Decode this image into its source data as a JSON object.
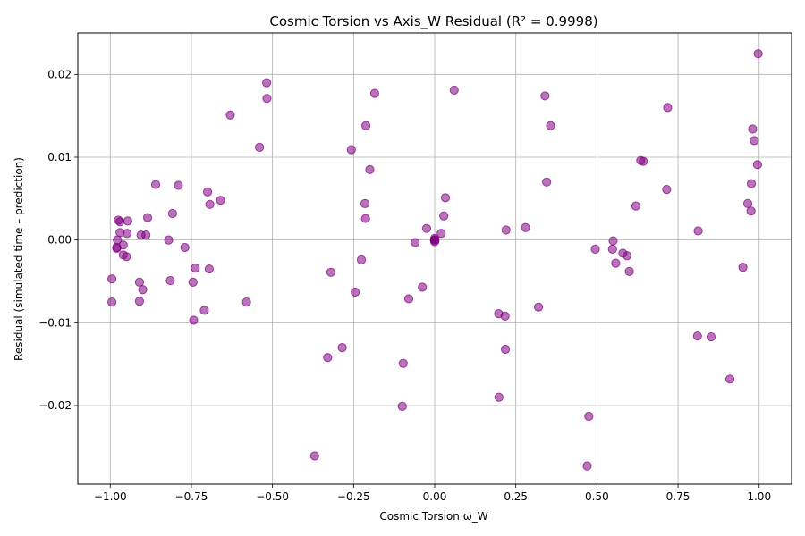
{
  "chart_data": {
    "type": "scatter",
    "title": "Cosmic Torsion vs Axis_W Residual (R² = 0.9998)",
    "xlabel": "Cosmic Torsion ω_W",
    "ylabel": "Residual (simulated time – prediction)",
    "xlim": [
      -1.1,
      1.1
    ],
    "ylim": [
      -0.0295,
      0.025
    ],
    "xticks": [
      -1.0,
      -0.75,
      -0.5,
      -0.25,
      0.0,
      0.25,
      0.5,
      0.75,
      1.0
    ],
    "xtick_labels": [
      "−1.00",
      "−0.75",
      "−0.50",
      "−0.25",
      "0.00",
      "0.25",
      "0.50",
      "0.75",
      "1.00"
    ],
    "yticks": [
      -0.02,
      -0.01,
      0.0,
      0.01,
      0.02
    ],
    "ytick_labels": [
      "−0.02",
      "−0.01",
      "0.00",
      "0.01",
      "0.02"
    ],
    "grid": true,
    "marker_color": "#800080",
    "series": [
      {
        "points": [
          [
            -0.995,
            -0.0075
          ],
          [
            -0.995,
            -0.0047
          ],
          [
            -0.98,
            -0.001
          ],
          [
            -0.98,
            -0.0009
          ],
          [
            -0.978,
            0.0
          ],
          [
            -0.975,
            0.0024
          ],
          [
            -0.97,
            0.0022
          ],
          [
            -0.97,
            0.0009
          ],
          [
            -0.96,
            -0.0006
          ],
          [
            -0.96,
            -0.0018
          ],
          [
            -0.95,
            -0.002
          ],
          [
            -0.948,
            0.0008
          ],
          [
            -0.946,
            0.0023
          ],
          [
            -0.91,
            -0.0051
          ],
          [
            -0.91,
            -0.0074
          ],
          [
            -0.905,
            0.0006
          ],
          [
            -0.9,
            -0.006
          ],
          [
            -0.89,
            0.0006
          ],
          [
            -0.885,
            0.0027
          ],
          [
            -0.86,
            0.0067
          ],
          [
            -0.82,
            0.0
          ],
          [
            -0.815,
            -0.0049
          ],
          [
            -0.808,
            0.0032
          ],
          [
            -0.79,
            0.0066
          ],
          [
            -0.77,
            -0.0009
          ],
          [
            -0.745,
            -0.0051
          ],
          [
            -0.743,
            -0.0097
          ],
          [
            -0.738,
            -0.0034
          ],
          [
            -0.71,
            -0.0085
          ],
          [
            -0.7,
            0.0058
          ],
          [
            -0.695,
            -0.0035
          ],
          [
            -0.693,
            0.0043
          ],
          [
            -0.66,
            0.0048
          ],
          [
            -0.63,
            0.0151
          ],
          [
            -0.58,
            -0.0075
          ],
          [
            -0.54,
            0.0112
          ],
          [
            -0.518,
            0.019
          ],
          [
            -0.517,
            0.0171
          ],
          [
            -0.37,
            -0.0261
          ],
          [
            -0.33,
            -0.0142
          ],
          [
            -0.32,
            -0.0039
          ],
          [
            -0.285,
            -0.013
          ],
          [
            -0.257,
            0.0109
          ],
          [
            -0.245,
            -0.0063
          ],
          [
            -0.226,
            -0.0024
          ],
          [
            -0.215,
            0.0044
          ],
          [
            -0.213,
            0.0026
          ],
          [
            -0.212,
            0.0138
          ],
          [
            -0.2,
            0.0085
          ],
          [
            -0.185,
            0.0177
          ],
          [
            -0.1,
            -0.0201
          ],
          [
            -0.097,
            -0.0149
          ],
          [
            -0.08,
            -0.0071
          ],
          [
            -0.06,
            -0.0003
          ],
          [
            -0.038,
            -0.0057
          ],
          [
            -0.025,
            0.0014
          ],
          [
            0.0,
            0.0
          ],
          [
            0.001,
            0.0
          ],
          [
            -0.001,
            0.0
          ],
          [
            0.0,
            0.0002
          ],
          [
            0.0,
            -0.0002
          ],
          [
            0.02,
            0.0008
          ],
          [
            0.028,
            0.0029
          ],
          [
            0.033,
            0.0051
          ],
          [
            0.06,
            0.0181
          ],
          [
            0.197,
            -0.0089
          ],
          [
            0.198,
            -0.019
          ],
          [
            0.217,
            -0.0092
          ],
          [
            0.218,
            -0.0132
          ],
          [
            0.22,
            0.0012
          ],
          [
            0.28,
            0.0015
          ],
          [
            0.32,
            -0.0081
          ],
          [
            0.34,
            0.0174
          ],
          [
            0.345,
            0.007
          ],
          [
            0.357,
            0.0138
          ],
          [
            0.47,
            -0.0273
          ],
          [
            0.475,
            -0.0213
          ],
          [
            0.495,
            -0.0011
          ],
          [
            0.548,
            -0.0011
          ],
          [
            0.55,
            -0.0001
          ],
          [
            0.558,
            -0.0028
          ],
          [
            0.58,
            -0.0016
          ],
          [
            0.593,
            -0.0019
          ],
          [
            0.6,
            -0.0038
          ],
          [
            0.62,
            0.0041
          ],
          [
            0.635,
            0.0096
          ],
          [
            0.643,
            0.0095
          ],
          [
            0.715,
            0.0061
          ],
          [
            0.718,
            0.016
          ],
          [
            0.81,
            -0.0116
          ],
          [
            0.812,
            0.0011
          ],
          [
            0.852,
            -0.0117
          ],
          [
            0.91,
            -0.0168
          ],
          [
            0.95,
            -0.0033
          ],
          [
            0.965,
            0.0044
          ],
          [
            0.975,
            0.0035
          ],
          [
            0.976,
            0.0068
          ],
          [
            0.98,
            0.0134
          ],
          [
            0.985,
            0.012
          ],
          [
            0.995,
            0.0091
          ],
          [
            0.997,
            0.0225
          ]
        ]
      }
    ]
  }
}
